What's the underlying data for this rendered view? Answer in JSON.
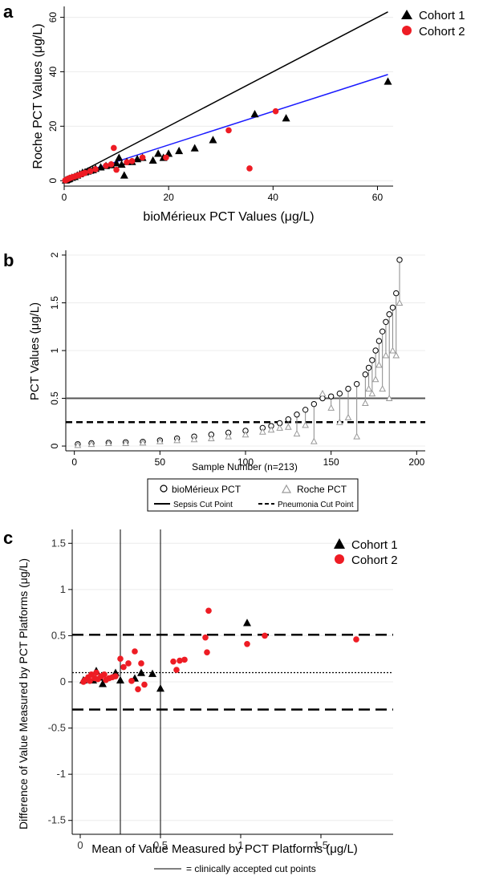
{
  "panels": {
    "a": {
      "letter": "a"
    },
    "b": {
      "letter": "b"
    },
    "c": {
      "letter": "c"
    }
  },
  "colors": {
    "cohort1": "#000000",
    "cohort2": "#ee1c24",
    "regression": "#1a1aff",
    "identity": "#000000",
    "roche_marker": "#999999"
  },
  "chart_data": [
    {
      "type": "scatter",
      "panel": "a",
      "title": "",
      "xlabel": "bioMérieux PCT Values (μg/L)",
      "ylabel": "Roche PCT Values (μg/L)",
      "xlim": [
        0,
        63
      ],
      "ylim": [
        -2,
        64
      ],
      "x_ticks": [
        0,
        20,
        40,
        60
      ],
      "y_ticks": [
        0,
        20,
        40,
        60
      ],
      "grid": "horizontal",
      "legend": "top-right",
      "lines": [
        {
          "name": "",
          "x": [
            0,
            62
          ],
          "y": [
            0,
            62
          ],
          "color": "#000000"
        },
        {
          "name": "",
          "x": [
            0,
            62
          ],
          "y": [
            0.8,
            39
          ],
          "color": "#1a1aff"
        }
      ],
      "series": [
        {
          "name": "Cohort 1",
          "marker": "triangle",
          "color": "#000000",
          "x": [
            0.3,
            0.5,
            0.8,
            1,
            1.5,
            2,
            2.5,
            3,
            3.5,
            4,
            4.5,
            5,
            5.5,
            6,
            7,
            8,
            9,
            10,
            10.5,
            11,
            11.5,
            12,
            13,
            14,
            15,
            17,
            18,
            19,
            20,
            22,
            25,
            28.5,
            36.5,
            42.5,
            62
          ],
          "y": [
            0.2,
            0.4,
            0.6,
            0.8,
            1.2,
            1.5,
            2,
            2.5,
            3,
            3.2,
            3.5,
            3.8,
            4,
            4.5,
            5,
            5.5,
            5.8,
            6.5,
            8.5,
            6,
            2,
            7,
            7,
            8,
            8.5,
            7.5,
            10,
            8.5,
            10,
            11,
            12,
            15,
            24.5,
            23,
            36.5
          ]
        },
        {
          "name": "Cohort 2",
          "marker": "circle",
          "color": "#ee1c24",
          "x": [
            0.2,
            0.4,
            0.6,
            0.8,
            1,
            1.3,
            1.6,
            2,
            2.4,
            2.8,
            3.2,
            3.6,
            4,
            5,
            6,
            8,
            9,
            9.5,
            10,
            12,
            13,
            15,
            19.5,
            31.5,
            35.5,
            40.5
          ],
          "y": [
            0.1,
            0.3,
            0.5,
            0.7,
            0.9,
            1.1,
            1.3,
            1.5,
            1.8,
            2,
            2.3,
            2.6,
            2.9,
            3.5,
            4.2,
            5.5,
            6,
            12,
            4,
            6.8,
            7.2,
            8.5,
            8.5,
            18.5,
            4.5,
            25.5
          ]
        }
      ]
    },
    {
      "type": "scatter",
      "panel": "b",
      "title": "",
      "xlabel": "Sample Number (n=213)",
      "ylabel": "PCT Values (μg/L)",
      "xlim": [
        -5,
        205
      ],
      "ylim": [
        -0.05,
        2.05
      ],
      "x_ticks": [
        0,
        50,
        100,
        150,
        200
      ],
      "y_ticks": [
        0,
        0.5,
        1,
        1.5,
        2
      ],
      "grid": "horizontal",
      "legend": "bottom",
      "reference_lines": [
        {
          "name": "Sepsis Cut Point",
          "y": 0.5,
          "style": "solid"
        },
        {
          "name": "Pneumonia Cut Point",
          "y": 0.25,
          "style": "dashed"
        }
      ],
      "legend_labels": {
        "biomerieux": "bioMérieux PCT",
        "roche": "Roche PCT",
        "sepsis": "Sepsis Cut Point",
        "pneumonia": "Pneumonia Cut Point"
      },
      "series": [
        {
          "name": "bioMérieux PCT",
          "marker": "open-circle",
          "color": "#000000",
          "x": [
            2,
            10,
            20,
            30,
            40,
            50,
            60,
            70,
            80,
            90,
            100,
            110,
            115,
            120,
            125,
            130,
            135,
            140,
            145,
            150,
            155,
            160,
            165,
            170,
            172,
            174,
            176,
            178,
            180,
            182,
            184,
            186,
            188,
            190
          ],
          "y": [
            0.02,
            0.03,
            0.035,
            0.04,
            0.045,
            0.06,
            0.08,
            0.1,
            0.12,
            0.14,
            0.16,
            0.19,
            0.21,
            0.24,
            0.28,
            0.33,
            0.38,
            0.44,
            0.5,
            0.52,
            0.55,
            0.6,
            0.65,
            0.75,
            0.82,
            0.9,
            1,
            1.1,
            1.2,
            1.3,
            1.38,
            1.45,
            1.6,
            1.95
          ]
        },
        {
          "name": "Roche PCT",
          "marker": "open-triangle",
          "color": "#999999",
          "x": [
            2,
            10,
            20,
            30,
            40,
            50,
            60,
            70,
            80,
            90,
            100,
            110,
            115,
            120,
            125,
            130,
            135,
            140,
            145,
            150,
            155,
            160,
            165,
            170,
            172,
            174,
            176,
            178,
            180,
            182,
            184,
            186,
            188,
            190
          ],
          "y": [
            0.01,
            0.02,
            0.03,
            0.03,
            0.035,
            0.05,
            0.06,
            0.07,
            0.08,
            0.1,
            0.12,
            0.15,
            0.17,
            0.19,
            0.2,
            0.13,
            0.22,
            0.05,
            0.55,
            0.4,
            0.25,
            0.3,
            0.1,
            0.45,
            0.6,
            0.55,
            0.7,
            0.85,
            0.6,
            0.95,
            0.5,
            1,
            0.95,
            1.5
          ]
        }
      ]
    },
    {
      "type": "scatter",
      "panel": "c",
      "title": "",
      "xlabel": "Mean of Value Measured by PCT Platforms (μg/L)",
      "ylabel": "Difference of Value Measured by PCT Platforms (μg/L)",
      "xlim": [
        -0.05,
        1.95
      ],
      "ylim": [
        -1.65,
        1.65
      ],
      "x_ticks": [
        0,
        0.5,
        1,
        1.5
      ],
      "y_ticks": [
        -1.5,
        -1,
        -0.5,
        0,
        0.5,
        1,
        1.5
      ],
      "grid": "horizontal",
      "legend": "top-right",
      "reference_lines": [
        {
          "y": 0.1,
          "style": "dotted"
        },
        {
          "y": 0.51,
          "style": "dashed"
        },
        {
          "y": -0.3,
          "style": "dashed"
        },
        {
          "x": 0.25,
          "style": "solid-vertical"
        },
        {
          "x": 0.5,
          "style": "solid-vertical"
        }
      ],
      "footnote": "= clinically accepted cut points",
      "series": [
        {
          "name": "Cohort 1",
          "marker": "triangle",
          "color": "#000000",
          "x": [
            0.02,
            0.05,
            0.08,
            0.1,
            0.12,
            0.14,
            0.22,
            0.25,
            0.34,
            0.38,
            0.45,
            0.5,
            1.04
          ],
          "y": [
            0.02,
            0.04,
            0.02,
            0.12,
            0.05,
            -0.02,
            0.1,
            0.02,
            0.04,
            0.1,
            0.09,
            -0.07,
            0.64
          ]
        },
        {
          "name": "Cohort 2",
          "marker": "circle",
          "color": "#ee1c24",
          "x": [
            0.02,
            0.03,
            0.05,
            0.06,
            0.07,
            0.09,
            0.1,
            0.11,
            0.13,
            0.15,
            0.16,
            0.18,
            0.2,
            0.22,
            0.25,
            0.27,
            0.3,
            0.32,
            0.34,
            0.36,
            0.38,
            0.4,
            0.58,
            0.6,
            0.62,
            0.65,
            0.78,
            0.79,
            0.8,
            1.04,
            1.15,
            1.72
          ],
          "y": [
            0,
            0.02,
            0.05,
            0.01,
            0.08,
            0.04,
            0.1,
            0.03,
            0.06,
            0.08,
            0.02,
            0.04,
            0.05,
            0.06,
            0.25,
            0.16,
            0.2,
            0.01,
            0.33,
            -0.08,
            0.2,
            -0.03,
            0.22,
            0.13,
            0.23,
            0.24,
            0.48,
            0.32,
            0.77,
            0.41,
            0.5,
            0.46
          ]
        }
      ]
    }
  ]
}
